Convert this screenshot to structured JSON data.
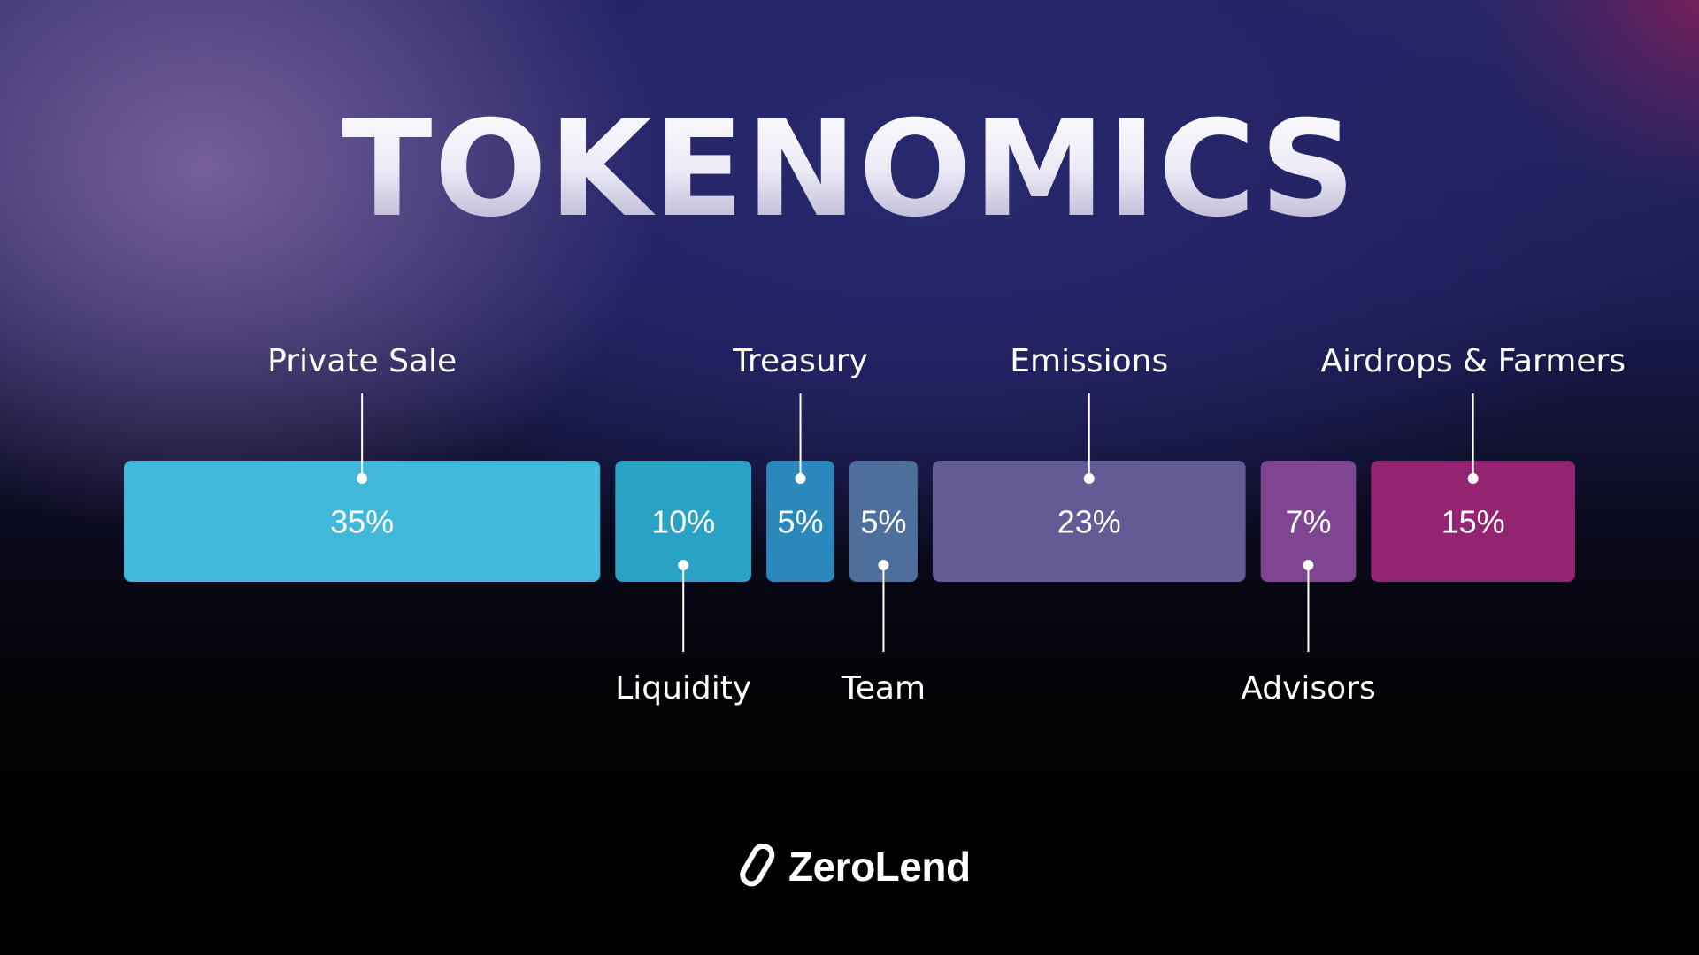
{
  "title": "TOKENOMICS",
  "brand": {
    "name": "ZeroLend"
  },
  "chart_data": {
    "type": "bar",
    "orientation": "stacked-horizontal",
    "unit": "%",
    "segments": [
      {
        "label": "Private Sale",
        "value": 35,
        "value_label": "35%",
        "color": "#41b8d9",
        "label_position": "top"
      },
      {
        "label": "Liquidity",
        "value": 10,
        "value_label": "10%",
        "color": "#2aa2c4",
        "label_position": "bottom"
      },
      {
        "label": "Treasury",
        "value": 5,
        "value_label": "5%",
        "color": "#2b88bc",
        "label_position": "top"
      },
      {
        "label": "Team",
        "value": 5,
        "value_label": "5%",
        "color": "#4e6e9c",
        "label_position": "bottom"
      },
      {
        "label": "Emissions",
        "value": 23,
        "value_label": "23%",
        "color": "#635b93",
        "label_position": "top"
      },
      {
        "label": "Advisors",
        "value": 7,
        "value_label": "7%",
        "color": "#7e4591",
        "label_position": "bottom"
      },
      {
        "label": "Airdrops & Farmers",
        "value": 15,
        "value_label": "15%",
        "color": "#932471",
        "label_position": "top"
      }
    ]
  }
}
